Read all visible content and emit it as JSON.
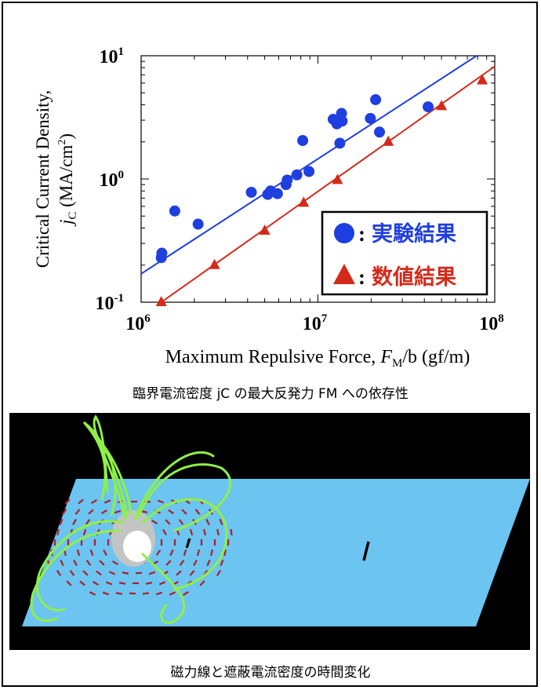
{
  "chart_data": {
    "type": "scatter",
    "x_scale": "log",
    "y_scale": "log",
    "xlim": [
      1000000,
      100000000
    ],
    "ylim": [
      0.1,
      10
    ],
    "x_ticks": [
      {
        "value": 1000000,
        "base": "10",
        "exp": "6"
      },
      {
        "value": 10000000,
        "base": "10",
        "exp": "7"
      },
      {
        "value": 100000000,
        "base": "10",
        "exp": "8"
      }
    ],
    "y_ticks": [
      {
        "value": 0.1,
        "base": "10",
        "exp": "-1"
      },
      {
        "value": 1,
        "base": "10",
        "exp": "0"
      },
      {
        "value": 10,
        "base": "10",
        "exp": "1"
      }
    ],
    "xlabel": {
      "text": "Maximum Repulsive Force, ",
      "sym": "F",
      "sub": "M",
      "tail": "/b (gf/m)"
    },
    "ylabel": {
      "line1": "Critical Current Density,",
      "sym": "j",
      "sub": "C",
      "tail": " (MA/cm",
      "sup": "2",
      "close": ")"
    },
    "series": [
      {
        "name": "実験結果",
        "color": "#1f3fe0",
        "marker": "circle",
        "points": [
          [
            1300000,
            0.23
          ],
          [
            1310000,
            0.25
          ],
          [
            1550000,
            0.55
          ],
          [
            2100000,
            0.43
          ],
          [
            4200000,
            0.78
          ],
          [
            5200000,
            0.75
          ],
          [
            5400000,
            0.8
          ],
          [
            5900000,
            0.76
          ],
          [
            6600000,
            0.9
          ],
          [
            6700000,
            0.98
          ],
          [
            7600000,
            1.08
          ],
          [
            8200000,
            2.05
          ],
          [
            8900000,
            1.15
          ],
          [
            12200000,
            3.05
          ],
          [
            12800000,
            2.8
          ],
          [
            13300000,
            1.95
          ],
          [
            13600000,
            3.4
          ],
          [
            13700000,
            2.95
          ],
          [
            19800000,
            3.1
          ],
          [
            21200000,
            4.4
          ],
          [
            22300000,
            2.4
          ],
          [
            42000000,
            3.85
          ]
        ],
        "fit": [
          [
            1000000,
            0.17
          ],
          [
            79000000,
            10
          ]
        ]
      },
      {
        "name": "数値結果",
        "color": "#d42a1a",
        "marker": "triangle",
        "points": [
          [
            1300000,
            0.1
          ],
          [
            2600000,
            0.2
          ],
          [
            5000000,
            0.38
          ],
          [
            8300000,
            0.64
          ],
          [
            12900000,
            0.98
          ],
          [
            25000000,
            2.0
          ],
          [
            50000000,
            3.9
          ],
          [
            85000000,
            6.3
          ]
        ],
        "fit": [
          [
            1300000,
            0.1
          ],
          [
            100000000,
            8.2
          ]
        ]
      }
    ],
    "legend_position": "bottom-right"
  },
  "captions": {
    "chart": "臨界電流密度 jC の最大反発力 FM への依存性",
    "simulation": "磁力線と遮蔽電流密度の時間変化"
  },
  "colors": {
    "plane": "#6cc4f0",
    "field_lines": "#8ef048",
    "current_arrows": "#b01c28"
  }
}
